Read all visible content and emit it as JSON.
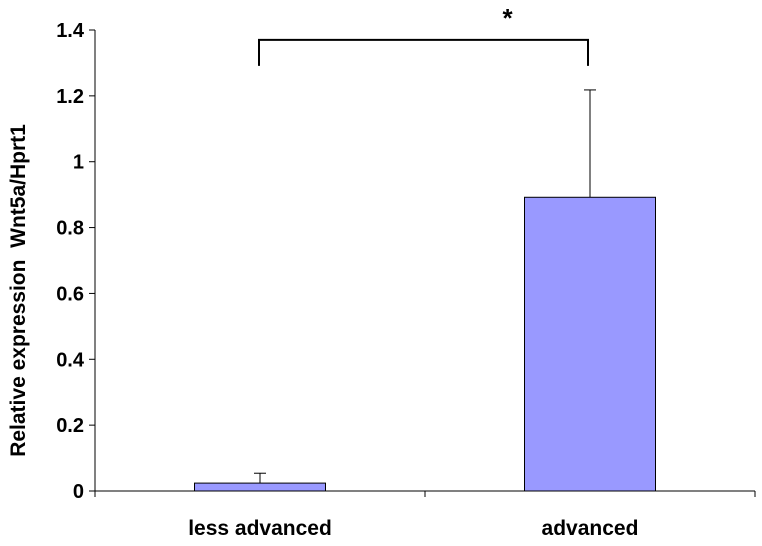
{
  "chart_data": {
    "type": "bar",
    "title": "",
    "xlabel": "",
    "ylabel": "Relative expression  Wnt5a/Hprt1",
    "ylim": [
      0,
      1.4
    ],
    "yticks": [
      0,
      0.2,
      0.4,
      0.6,
      0.8,
      1,
      1.2,
      1.4
    ],
    "ytick_labels": [
      "0",
      "0.2",
      "0.4",
      "0.6",
      "0.8",
      "1",
      "1.2",
      "1.4"
    ],
    "categories": [
      "less advanced",
      "advanced"
    ],
    "values": [
      0.024,
      0.892
    ],
    "error_upper": [
      0.03,
      0.326
    ],
    "bar_color": "#9999ff",
    "grid": false,
    "legend": "none",
    "significance": {
      "between": [
        "less advanced",
        "advanced"
      ],
      "label": "*",
      "bracket_level": 1.37
    }
  }
}
